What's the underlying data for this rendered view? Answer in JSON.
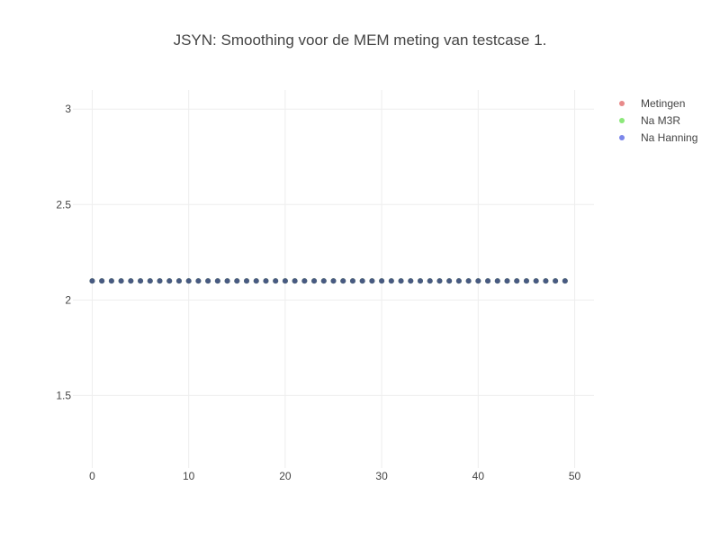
{
  "chart_data": {
    "type": "scatter",
    "title": "JSYN: Smoothing voor de MEM meting van testcase 1.",
    "xlabel": "",
    "ylabel": "",
    "xlim": [
      -2,
      52
    ],
    "ylim": [
      1.12,
      3.1
    ],
    "x_ticks": [
      0,
      10,
      20,
      30,
      40,
      50
    ],
    "y_ticks": [
      1.5,
      2,
      2.5,
      3
    ],
    "x_tick_labels": [
      "0",
      "10",
      "20",
      "30",
      "40",
      "50"
    ],
    "y_tick_labels": [
      "1.5",
      "2",
      "2.5",
      "3"
    ],
    "grid": true,
    "legend_position": "top-right",
    "x": [
      0,
      1,
      2,
      3,
      4,
      5,
      6,
      7,
      8,
      9,
      10,
      11,
      12,
      13,
      14,
      15,
      16,
      17,
      18,
      19,
      20,
      21,
      22,
      23,
      24,
      25,
      26,
      27,
      28,
      29,
      30,
      31,
      32,
      33,
      34,
      35,
      36,
      37,
      38,
      39,
      40,
      41,
      42,
      43,
      44,
      45,
      46,
      47,
      48,
      49
    ],
    "series": [
      {
        "name": "Metingen",
        "color": "#e88a8a",
        "values": [
          2.1,
          2.1,
          2.1,
          2.1,
          2.1,
          2.1,
          2.1,
          2.1,
          2.1,
          2.1,
          2.1,
          2.1,
          2.1,
          2.1,
          2.1,
          2.1,
          2.1,
          2.1,
          2.1,
          2.1,
          2.1,
          2.1,
          2.1,
          2.1,
          2.1,
          2.1,
          2.1,
          2.1,
          2.1,
          2.1,
          2.1,
          2.1,
          2.1,
          2.1,
          2.1,
          2.1,
          2.1,
          2.1,
          2.1,
          2.1,
          2.1,
          2.1,
          2.1,
          2.1,
          2.1,
          2.1,
          2.1,
          2.1,
          2.1,
          2.1
        ]
      },
      {
        "name": "Na M3R",
        "color": "#8ce87a",
        "values": [
          2.1,
          2.1,
          2.1,
          2.1,
          2.1,
          2.1,
          2.1,
          2.1,
          2.1,
          2.1,
          2.1,
          2.1,
          2.1,
          2.1,
          2.1,
          2.1,
          2.1,
          2.1,
          2.1,
          2.1,
          2.1,
          2.1,
          2.1,
          2.1,
          2.1,
          2.1,
          2.1,
          2.1,
          2.1,
          2.1,
          2.1,
          2.1,
          2.1,
          2.1,
          2.1,
          2.1,
          2.1,
          2.1,
          2.1,
          2.1,
          2.1,
          2.1,
          2.1,
          2.1,
          2.1,
          2.1,
          2.1,
          2.1,
          2.1,
          2.1
        ]
      },
      {
        "name": "Na Hanning",
        "color": "#7b86ea",
        "values": [
          2.1,
          2.1,
          2.1,
          2.1,
          2.1,
          2.1,
          2.1,
          2.1,
          2.1,
          2.1,
          2.1,
          2.1,
          2.1,
          2.1,
          2.1,
          2.1,
          2.1,
          2.1,
          2.1,
          2.1,
          2.1,
          2.1,
          2.1,
          2.1,
          2.1,
          2.1,
          2.1,
          2.1,
          2.1,
          2.1,
          2.1,
          2.1,
          2.1,
          2.1,
          2.1,
          2.1,
          2.1,
          2.1,
          2.1,
          2.1,
          2.1,
          2.1,
          2.1,
          2.1,
          2.1,
          2.1,
          2.1,
          2.1,
          2.1,
          2.1
        ]
      }
    ],
    "overlap_marker_color": "#485a82"
  }
}
